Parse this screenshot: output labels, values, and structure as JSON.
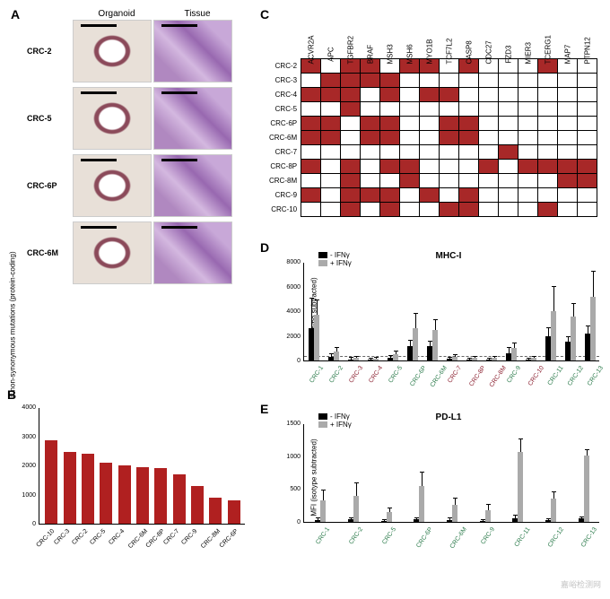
{
  "labels": {
    "A": "A",
    "B": "B",
    "C": "C",
    "D": "D",
    "E": "E"
  },
  "panelA": {
    "col1": "Organoid",
    "col2": "Tissue",
    "rows": [
      "CRC-2",
      "CRC-5",
      "CRC-6P",
      "CRC-6M"
    ]
  },
  "panelB": {
    "ylabel": "# non-synonymous mutations\n(protein-coding)",
    "ymax": 4000,
    "ytick_step": 1000,
    "bar_color": "#b02020",
    "bars": [
      {
        "label": "CRC-10",
        "value": 2850
      },
      {
        "label": "CRC-3",
        "value": 2450
      },
      {
        "label": "CRC-2",
        "value": 2400
      },
      {
        "label": "CRC-5",
        "value": 2100
      },
      {
        "label": "CRC-4",
        "value": 2000
      },
      {
        "label": "CRC-6M",
        "value": 1950
      },
      {
        "label": "CRC-8P",
        "value": 1900
      },
      {
        "label": "CRC-7",
        "value": 1700
      },
      {
        "label": "CRC-9",
        "value": 1300
      },
      {
        "label": "CRC-8M",
        "value": 900
      },
      {
        "label": "CRC-6P",
        "value": 800
      }
    ]
  },
  "panelC": {
    "on_color": "#a82828",
    "off_color": "#ffffff",
    "cols": [
      "ACVR2A",
      "APC",
      "TGFBR2",
      "BRAF",
      "MSH3",
      "MSH6",
      "MYO1B",
      "TCF7L2",
      "CASP8",
      "CDC27",
      "FZD3",
      "MIER3",
      "TCERG1",
      "MAP7",
      "PTPN12"
    ],
    "rows": [
      "CRC-2",
      "CRC-3",
      "CRC-4",
      "CRC-5",
      "CRC-6P",
      "CRC-6M",
      "CRC-7",
      "CRC-8P",
      "CRC-8M",
      "CRC-9",
      "CRC-10"
    ],
    "matrix": [
      [
        1,
        0,
        1,
        1,
        0,
        1,
        1,
        0,
        1,
        0,
        0,
        0,
        1,
        0,
        0
      ],
      [
        0,
        1,
        1,
        1,
        1,
        0,
        0,
        0,
        0,
        0,
        0,
        0,
        0,
        0,
        0
      ],
      [
        1,
        1,
        1,
        0,
        1,
        0,
        1,
        1,
        0,
        0,
        0,
        0,
        0,
        0,
        0
      ],
      [
        0,
        0,
        1,
        0,
        0,
        0,
        0,
        0,
        0,
        0,
        0,
        0,
        0,
        0,
        0
      ],
      [
        1,
        1,
        0,
        1,
        1,
        0,
        0,
        1,
        1,
        0,
        0,
        0,
        0,
        0,
        0
      ],
      [
        1,
        1,
        0,
        1,
        1,
        0,
        0,
        1,
        1,
        0,
        0,
        0,
        0,
        0,
        0
      ],
      [
        0,
        0,
        0,
        0,
        0,
        0,
        0,
        0,
        0,
        0,
        1,
        0,
        0,
        0,
        0
      ],
      [
        1,
        0,
        1,
        0,
        1,
        1,
        0,
        0,
        0,
        1,
        0,
        1,
        1,
        1,
        1
      ],
      [
        0,
        0,
        1,
        0,
        0,
        1,
        0,
        0,
        0,
        0,
        0,
        0,
        0,
        1,
        1
      ],
      [
        1,
        0,
        1,
        1,
        1,
        0,
        1,
        0,
        1,
        0,
        0,
        0,
        0,
        0,
        0
      ],
      [
        0,
        0,
        1,
        0,
        1,
        0,
        0,
        1,
        1,
        0,
        0,
        0,
        1,
        0,
        0
      ]
    ]
  },
  "panelD": {
    "title": "MHC-I",
    "ylabel": "MFI\n(isotype subtracted)",
    "ymax": 8000,
    "ytick_step": 2000,
    "legend_minus": "- IFNγ",
    "legend_plus": "+ IFNγ",
    "minus_color": "#000000",
    "plus_color": "#aaaaaa",
    "dashed_at": 300,
    "samples": [
      {
        "label": "CRC-1",
        "color": "#2a7a4a",
        "minus": 2600,
        "minus_err": 2400,
        "plus": 3700,
        "plus_err": 1200
      },
      {
        "label": "CRC-2",
        "color": "#2a7a4a",
        "minus": 300,
        "minus_err": 200,
        "plus": 700,
        "plus_err": 300
      },
      {
        "label": "CRC-3",
        "color": "#8b2030",
        "minus": 100,
        "minus_err": 100,
        "plus": 200,
        "plus_err": 100
      },
      {
        "label": "CRC-4",
        "color": "#8b2030",
        "minus": 100,
        "minus_err": 50,
        "plus": 150,
        "plus_err": 50
      },
      {
        "label": "CRC-5",
        "color": "#2a7a4a",
        "minus": 200,
        "minus_err": 150,
        "plus": 500,
        "plus_err": 200
      },
      {
        "label": "CRC-6P",
        "color": "#2a7a4a",
        "minus": 1200,
        "minus_err": 400,
        "plus": 2600,
        "plus_err": 1200
      },
      {
        "label": "CRC-6M",
        "color": "#2a7a4a",
        "minus": 1200,
        "minus_err": 300,
        "plus": 2500,
        "plus_err": 800
      },
      {
        "label": "CRC-7",
        "color": "#8b2030",
        "minus": 150,
        "minus_err": 100,
        "plus": 300,
        "plus_err": 150
      },
      {
        "label": "CRC-8P",
        "color": "#8b2030",
        "minus": 100,
        "minus_err": 50,
        "plus": 200,
        "plus_err": 100
      },
      {
        "label": "CRC-8M",
        "color": "#8b2030",
        "minus": 100,
        "minus_err": 50,
        "plus": 200,
        "plus_err": 100
      },
      {
        "label": "CRC-9",
        "color": "#2a7a4a",
        "minus": 600,
        "minus_err": 400,
        "plus": 1000,
        "plus_err": 400
      },
      {
        "label": "CRC-10",
        "color": "#8b2030",
        "minus": 100,
        "minus_err": 50,
        "plus": 200,
        "plus_err": 100
      },
      {
        "label": "CRC-11",
        "color": "#2a7a4a",
        "minus": 2000,
        "minus_err": 600,
        "plus": 4000,
        "plus_err": 2000
      },
      {
        "label": "CRC-12",
        "color": "#2a7a4a",
        "minus": 1500,
        "minus_err": 400,
        "plus": 3600,
        "plus_err": 1000
      },
      {
        "label": "CRC-13",
        "color": "#2a7a4a",
        "minus": 2200,
        "minus_err": 600,
        "plus": 5200,
        "plus_err": 2000
      }
    ]
  },
  "panelE": {
    "title": "PD-L1",
    "ylabel": "MFI\n(isotype subtracted)",
    "ymax": 1500,
    "ytick_step": 500,
    "legend_minus": "- IFNγ",
    "legend_plus": "+ IFNγ",
    "minus_color": "#000000",
    "plus_color": "#aaaaaa",
    "samples": [
      {
        "label": "CRC-1",
        "color": "#2a7a4a",
        "minus": 30,
        "minus_err": 20,
        "plus": 330,
        "plus_err": 150
      },
      {
        "label": "CRC-2",
        "color": "#2a7a4a",
        "minus": 40,
        "minus_err": 20,
        "plus": 400,
        "plus_err": 180
      },
      {
        "label": "CRC-5",
        "color": "#2a7a4a",
        "minus": 20,
        "minus_err": 10,
        "plus": 150,
        "plus_err": 50
      },
      {
        "label": "CRC-6P",
        "color": "#2a7a4a",
        "minus": 40,
        "minus_err": 20,
        "plus": 550,
        "plus_err": 200
      },
      {
        "label": "CRC-6M",
        "color": "#2a7a4a",
        "minus": 30,
        "minus_err": 20,
        "plus": 260,
        "plus_err": 100
      },
      {
        "label": "CRC-9",
        "color": "#2a7a4a",
        "minus": 20,
        "minus_err": 10,
        "plus": 180,
        "plus_err": 80
      },
      {
        "label": "CRC-11",
        "color": "#2a7a4a",
        "minus": 60,
        "minus_err": 30,
        "plus": 1060,
        "plus_err": 200
      },
      {
        "label": "CRC-12",
        "color": "#2a7a4a",
        "minus": 30,
        "minus_err": 15,
        "plus": 350,
        "plus_err": 100
      },
      {
        "label": "CRC-13",
        "color": "#2a7a4a",
        "minus": 50,
        "minus_err": 25,
        "plus": 1010,
        "plus_err": 80
      }
    ]
  },
  "watermark": "嘉峪检测网"
}
